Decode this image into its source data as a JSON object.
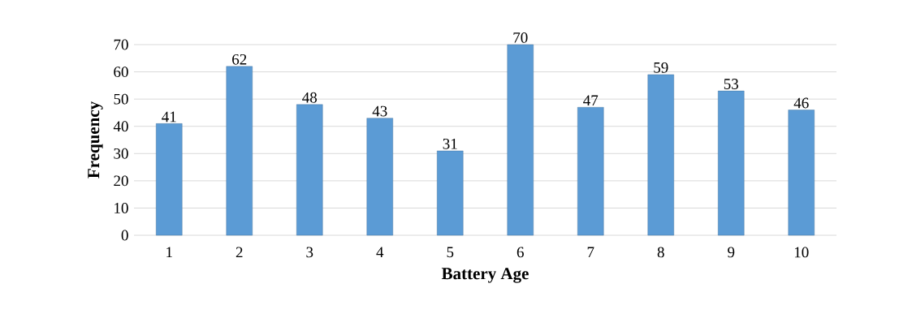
{
  "chart_data": {
    "type": "bar",
    "xlabel": "Battery Age",
    "ylabel": "Frequency",
    "categories": [
      "1",
      "2",
      "3",
      "4",
      "5",
      "6",
      "7",
      "8",
      "9",
      "10"
    ],
    "values": [
      41,
      62,
      48,
      43,
      31,
      70,
      47,
      59,
      53,
      46
    ],
    "color": "#5b9bd5",
    "ylim": [
      0,
      70
    ],
    "yticks": [
      0,
      10,
      20,
      30,
      40,
      50,
      60,
      70
    ],
    "grid": "y",
    "data_labels": true
  }
}
